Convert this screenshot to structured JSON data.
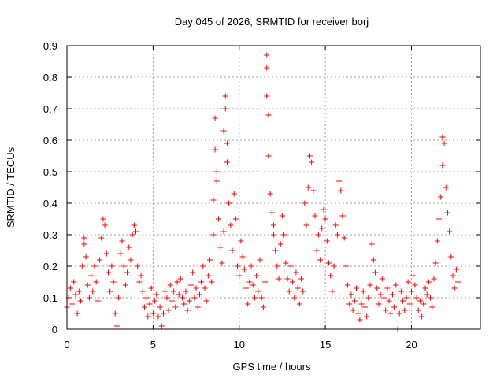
{
  "chart_data": {
    "type": "scatter",
    "title": "Day 045 of 2026, SRMTID for receiver borj",
    "xlabel": "GPS time / hours",
    "ylabel": "SRMTID / TECUs",
    "xlim": [
      0,
      24
    ],
    "ylim": [
      0,
      0.9
    ],
    "xticks": [
      0,
      5,
      10,
      15,
      20
    ],
    "yticks": [
      0,
      0.1,
      0.2,
      0.3,
      0.4,
      0.5,
      0.6,
      0.7,
      0.8,
      0.9
    ],
    "xtick_labels": [
      "0",
      "5",
      "10",
      "15",
      "20"
    ],
    "ytick_labels": [
      "0",
      "0.1",
      "0.2",
      "0.3",
      "0.4",
      "0.5",
      "0.6",
      "0.7",
      "0.8",
      "0.9"
    ],
    "grid": true,
    "marker": "+",
    "color": "#ff0000",
    "series": [
      {
        "name": "SRMTID",
        "points": [
          [
            0.0,
            0.07
          ],
          [
            0.1,
            0.1
          ],
          [
            0.2,
            0.13
          ],
          [
            0.3,
            0.08
          ],
          [
            0.4,
            0.15
          ],
          [
            0.5,
            0.11
          ],
          [
            0.6,
            0.05
          ],
          [
            0.7,
            0.12
          ],
          [
            0.8,
            0.09
          ],
          [
            0.9,
            0.2
          ],
          [
            1.0,
            0.29
          ],
          [
            1.0,
            0.27
          ],
          [
            1.1,
            0.23
          ],
          [
            1.2,
            0.14
          ],
          [
            1.3,
            0.1
          ],
          [
            1.4,
            0.17
          ],
          [
            1.5,
            0.12
          ],
          [
            1.6,
            0.2
          ],
          [
            1.7,
            0.15
          ],
          [
            1.8,
            0.09
          ],
          [
            1.9,
            0.22
          ],
          [
            2.0,
            0.29
          ],
          [
            2.1,
            0.35
          ],
          [
            2.2,
            0.33
          ],
          [
            2.3,
            0.24
          ],
          [
            2.4,
            0.18
          ],
          [
            2.5,
            0.12
          ],
          [
            2.6,
            0.2
          ],
          [
            2.7,
            0.15
          ],
          [
            2.8,
            0.05
          ],
          [
            2.9,
            0.01
          ],
          [
            3.0,
            0.1
          ],
          [
            3.1,
            0.24
          ],
          [
            3.2,
            0.28
          ],
          [
            3.3,
            0.2
          ],
          [
            3.4,
            0.14
          ],
          [
            3.5,
            0.18
          ],
          [
            3.6,
            0.26
          ],
          [
            3.7,
            0.22
          ],
          [
            3.8,
            0.3
          ],
          [
            3.9,
            0.33
          ],
          [
            4.0,
            0.31
          ],
          [
            4.1,
            0.2
          ],
          [
            4.2,
            0.15
          ],
          [
            4.3,
            0.17
          ],
          [
            4.4,
            0.12
          ],
          [
            4.5,
            0.07
          ],
          [
            4.6,
            0.1
          ],
          [
            4.7,
            0.04
          ],
          [
            4.8,
            0.08
          ],
          [
            4.9,
            0.13
          ],
          [
            5.0,
            0.05
          ],
          [
            5.1,
            0.09
          ],
          [
            5.2,
            0.11
          ],
          [
            5.3,
            0.04
          ],
          [
            5.4,
            0.07
          ],
          [
            5.5,
            0.01
          ],
          [
            5.6,
            0.05
          ],
          [
            5.7,
            0.12
          ],
          [
            5.8,
            0.1
          ],
          [
            5.9,
            0.06
          ],
          [
            6.0,
            0.14
          ],
          [
            6.1,
            0.09
          ],
          [
            6.2,
            0.12
          ],
          [
            6.3,
            0.07
          ],
          [
            6.4,
            0.15
          ],
          [
            6.5,
            0.11
          ],
          [
            6.6,
            0.16
          ],
          [
            6.7,
            0.1
          ],
          [
            6.8,
            0.08
          ],
          [
            6.9,
            0.12
          ],
          [
            7.0,
            0.06
          ],
          [
            7.1,
            0.09
          ],
          [
            7.2,
            0.14
          ],
          [
            7.3,
            0.18
          ],
          [
            7.4,
            0.1
          ],
          [
            7.5,
            0.13
          ],
          [
            7.6,
            0.07
          ],
          [
            7.7,
            0.11
          ],
          [
            7.8,
            0.15
          ],
          [
            7.9,
            0.2
          ],
          [
            8.0,
            0.13
          ],
          [
            8.1,
            0.09
          ],
          [
            8.2,
            0.17
          ],
          [
            8.3,
            0.22
          ],
          [
            8.4,
            0.15
          ],
          [
            8.5,
            0.3
          ],
          [
            8.5,
            0.41
          ],
          [
            8.6,
            0.57
          ],
          [
            8.6,
            0.67
          ],
          [
            8.7,
            0.5
          ],
          [
            8.7,
            0.47
          ],
          [
            8.8,
            0.35
          ],
          [
            8.9,
            0.26
          ],
          [
            9.0,
            0.21
          ],
          [
            9.1,
            0.31
          ],
          [
            9.1,
            0.63
          ],
          [
            9.2,
            0.74
          ],
          [
            9.2,
            0.7
          ],
          [
            9.3,
            0.59
          ],
          [
            9.3,
            0.53
          ],
          [
            9.4,
            0.4
          ],
          [
            9.5,
            0.33
          ],
          [
            9.6,
            0.25
          ],
          [
            9.7,
            0.43
          ],
          [
            9.8,
            0.35
          ],
          [
            9.9,
            0.2
          ],
          [
            10.0,
            0.17
          ],
          [
            10.1,
            0.28
          ],
          [
            10.2,
            0.23
          ],
          [
            10.3,
            0.19
          ],
          [
            10.4,
            0.13
          ],
          [
            10.5,
            0.08
          ],
          [
            10.6,
            0.15
          ],
          [
            10.7,
            0.2
          ],
          [
            10.8,
            0.14
          ],
          [
            10.9,
            0.1
          ],
          [
            11.0,
            0.17
          ],
          [
            11.1,
            0.12
          ],
          [
            11.2,
            0.22
          ],
          [
            11.3,
            0.1
          ],
          [
            11.4,
            0.07
          ],
          [
            11.5,
            0.15
          ],
          [
            11.6,
            0.87
          ],
          [
            11.6,
            0.83
          ],
          [
            11.6,
            0.74
          ],
          [
            11.7,
            0.68
          ],
          [
            11.7,
            0.55
          ],
          [
            11.8,
            0.43
          ],
          [
            11.9,
            0.37
          ],
          [
            12.0,
            0.33
          ],
          [
            12.0,
            0.3
          ],
          [
            12.1,
            0.25
          ],
          [
            12.2,
            0.2
          ],
          [
            12.3,
            0.16
          ],
          [
            12.4,
            0.27
          ],
          [
            12.5,
            0.36
          ],
          [
            12.6,
            0.3
          ],
          [
            12.7,
            0.21
          ],
          [
            12.8,
            0.16
          ],
          [
            12.9,
            0.12
          ],
          [
            13.0,
            0.2
          ],
          [
            13.1,
            0.15
          ],
          [
            13.2,
            0.1
          ],
          [
            13.3,
            0.18
          ],
          [
            13.4,
            0.13
          ],
          [
            13.5,
            0.08
          ],
          [
            13.6,
            0.16
          ],
          [
            13.7,
            0.12
          ],
          [
            13.8,
            0.4
          ],
          [
            13.9,
            0.33
          ],
          [
            14.0,
            0.45
          ],
          [
            14.1,
            0.55
          ],
          [
            14.2,
            0.53
          ],
          [
            14.3,
            0.44
          ],
          [
            14.4,
            0.36
          ],
          [
            14.5,
            0.25
          ],
          [
            14.6,
            0.3
          ],
          [
            14.7,
            0.22
          ],
          [
            14.8,
            0.32
          ],
          [
            14.9,
            0.38
          ],
          [
            15.0,
            0.35
          ],
          [
            15.1,
            0.28
          ],
          [
            15.2,
            0.21
          ],
          [
            15.3,
            0.17
          ],
          [
            15.4,
            0.12
          ],
          [
            15.5,
            0.2
          ],
          [
            15.6,
            0.33
          ],
          [
            15.7,
            0.3
          ],
          [
            15.8,
            0.47
          ],
          [
            15.9,
            0.44
          ],
          [
            16.0,
            0.36
          ],
          [
            16.1,
            0.29
          ],
          [
            16.2,
            0.2
          ],
          [
            16.3,
            0.14
          ],
          [
            16.4,
            0.08
          ],
          [
            16.5,
            0.11
          ],
          [
            16.6,
            0.06
          ],
          [
            16.7,
            0.09
          ],
          [
            16.8,
            0.13
          ],
          [
            16.9,
            0.05
          ],
          [
            17.0,
            0.03
          ],
          [
            17.1,
            0.08
          ],
          [
            17.2,
            0.12
          ],
          [
            17.3,
            0.07
          ],
          [
            17.4,
            0.04
          ],
          [
            17.5,
            0.1
          ],
          [
            17.6,
            0.14
          ],
          [
            17.7,
            0.27
          ],
          [
            17.8,
            0.22
          ],
          [
            17.9,
            0.18
          ],
          [
            18.0,
            0.13
          ],
          [
            18.1,
            0.08
          ],
          [
            18.2,
            0.11
          ],
          [
            18.3,
            0.16
          ],
          [
            18.4,
            0.1
          ],
          [
            18.5,
            0.06
          ],
          [
            18.6,
            0.13
          ],
          [
            18.7,
            0.09
          ],
          [
            18.8,
            0.05
          ],
          [
            18.9,
            0.11
          ],
          [
            19.0,
            0.07
          ],
          [
            19.1,
            0.14
          ],
          [
            19.2,
            0.0
          ],
          [
            19.3,
            0.05
          ],
          [
            19.4,
            0.12
          ],
          [
            19.5,
            0.09
          ],
          [
            19.6,
            0.06
          ],
          [
            19.7,
            0.1
          ],
          [
            19.8,
            0.15
          ],
          [
            19.9,
            0.08
          ],
          [
            20.0,
            0.12
          ],
          [
            20.1,
            0.17
          ],
          [
            20.2,
            0.14
          ],
          [
            20.3,
            0.1
          ],
          [
            20.4,
            0.06
          ],
          [
            20.5,
            0.09
          ],
          [
            20.6,
            0.04
          ],
          [
            20.7,
            0.08
          ],
          [
            20.8,
            0.13
          ],
          [
            20.9,
            0.11
          ],
          [
            21.0,
            0.15
          ],
          [
            21.1,
            0.1
          ],
          [
            21.2,
            0.07
          ],
          [
            21.3,
            0.16
          ],
          [
            21.4,
            0.21
          ],
          [
            21.5,
            0.28
          ],
          [
            21.6,
            0.35
          ],
          [
            21.7,
            0.42
          ],
          [
            21.8,
            0.52
          ],
          [
            21.8,
            0.61
          ],
          [
            21.9,
            0.59
          ],
          [
            22.0,
            0.45
          ],
          [
            22.1,
            0.37
          ],
          [
            22.2,
            0.31
          ],
          [
            22.3,
            0.23
          ],
          [
            22.4,
            0.17
          ],
          [
            22.5,
            0.13
          ],
          [
            22.6,
            0.19
          ],
          [
            22.7,
            0.15
          ]
        ]
      }
    ]
  }
}
